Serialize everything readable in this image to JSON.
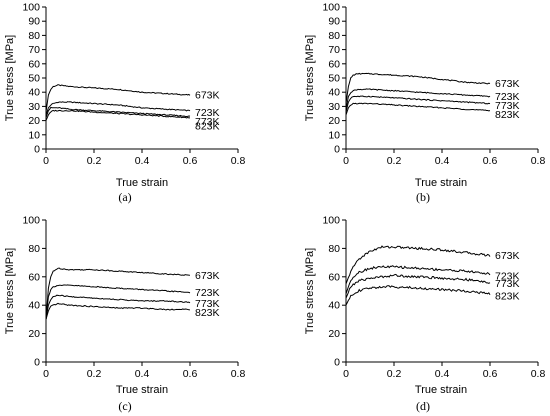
{
  "chart_data": [
    {
      "panel": "(a)",
      "type": "line",
      "xlabel": "True strain",
      "ylabel": "True stress [MPa]",
      "xlim": [
        0,
        0.8
      ],
      "ylim": [
        0,
        100
      ],
      "xticks": [
        "0",
        "0.2",
        "0.4",
        "0.6",
        "0.8"
      ],
      "yticks": [
        "0",
        "10",
        "20",
        "30",
        "40",
        "50",
        "60",
        "70",
        "80",
        "90",
        "100"
      ],
      "series": [
        {
          "name": "673K",
          "x": [
            0,
            0.01,
            0.02,
            0.03,
            0.05,
            0.1,
            0.2,
            0.3,
            0.4,
            0.5,
            0.6
          ],
          "y": [
            26,
            38,
            42,
            44,
            45,
            44,
            43,
            42,
            40,
            39,
            38
          ]
        },
        {
          "name": "723K",
          "x": [
            0,
            0.01,
            0.02,
            0.03,
            0.05,
            0.1,
            0.2,
            0.3,
            0.4,
            0.5,
            0.6
          ],
          "y": [
            24,
            29,
            31,
            32,
            33,
            33,
            32,
            31,
            29,
            28,
            27
          ]
        },
        {
          "name": "773K",
          "x": [
            0,
            0.01,
            0.02,
            0.03,
            0.05,
            0.1,
            0.2,
            0.3,
            0.4,
            0.5,
            0.6
          ],
          "y": [
            22,
            27,
            29,
            29,
            29,
            28,
            27,
            26,
            25,
            24,
            23
          ]
        },
        {
          "name": "823K",
          "x": [
            0,
            0.01,
            0.02,
            0.03,
            0.05,
            0.1,
            0.2,
            0.3,
            0.4,
            0.5,
            0.6
          ],
          "y": [
            20,
            24,
            26,
            27,
            27,
            27,
            26,
            25,
            24,
            23,
            22
          ]
        }
      ]
    },
    {
      "panel": "(b)",
      "type": "line",
      "xlabel": "True strain",
      "ylabel": "True stress [MPa]",
      "xlim": [
        0,
        0.8
      ],
      "ylim": [
        0,
        100
      ],
      "xticks": [
        "0",
        "0.2",
        "0.4",
        "0.6",
        "0.8"
      ],
      "yticks": [
        "0",
        "10",
        "20",
        "30",
        "40",
        "50",
        "60",
        "70",
        "80",
        "90",
        "100"
      ],
      "series": [
        {
          "name": "673K",
          "x": [
            0,
            0.01,
            0.02,
            0.03,
            0.05,
            0.1,
            0.2,
            0.3,
            0.4,
            0.5,
            0.6
          ],
          "y": [
            32,
            44,
            50,
            52,
            53,
            53,
            52,
            51,
            49,
            47,
            46
          ]
        },
        {
          "name": "723K",
          "x": [
            0,
            0.01,
            0.02,
            0.03,
            0.05,
            0.1,
            0.2,
            0.3,
            0.4,
            0.5,
            0.6
          ],
          "y": [
            28,
            37,
            40,
            41,
            42,
            42,
            41,
            40,
            39,
            38,
            37
          ]
        },
        {
          "name": "773K",
          "x": [
            0,
            0.01,
            0.02,
            0.03,
            0.05,
            0.1,
            0.2,
            0.3,
            0.4,
            0.5,
            0.6
          ],
          "y": [
            26,
            33,
            36,
            37,
            37,
            37,
            36,
            35,
            34,
            33,
            32
          ]
        },
        {
          "name": "823K",
          "x": [
            0,
            0.01,
            0.02,
            0.03,
            0.05,
            0.1,
            0.2,
            0.3,
            0.4,
            0.5,
            0.6
          ],
          "y": [
            24,
            29,
            31,
            32,
            32,
            32,
            31,
            30,
            29,
            28,
            27
          ]
        }
      ]
    },
    {
      "panel": "(c)",
      "type": "line",
      "xlabel": "True strain",
      "ylabel": "True stress [MPa]",
      "xlim": [
        0,
        0.8
      ],
      "ylim": [
        0,
        100
      ],
      "xticks": [
        "0",
        "0.2",
        "0.4",
        "0.6",
        "0.8"
      ],
      "yticks": [
        "0",
        "20",
        "40",
        "60",
        "80",
        "100"
      ],
      "series": [
        {
          "name": "673K",
          "x": [
            0,
            0.01,
            0.02,
            0.03,
            0.05,
            0.1,
            0.2,
            0.3,
            0.4,
            0.5,
            0.6
          ],
          "y": [
            30,
            52,
            60,
            64,
            66,
            65,
            65,
            64,
            63,
            62,
            61
          ]
        },
        {
          "name": "723K",
          "x": [
            0,
            0.01,
            0.02,
            0.03,
            0.05,
            0.1,
            0.2,
            0.3,
            0.4,
            0.5,
            0.6
          ],
          "y": [
            30,
            46,
            51,
            53,
            54,
            54,
            53,
            52,
            51,
            50,
            49
          ]
        },
        {
          "name": "773K",
          "x": [
            0,
            0.01,
            0.02,
            0.03,
            0.05,
            0.1,
            0.2,
            0.3,
            0.4,
            0.5,
            0.6
          ],
          "y": [
            30,
            40,
            44,
            46,
            47,
            46,
            45,
            44,
            43,
            43,
            42
          ]
        },
        {
          "name": "823K",
          "x": [
            0,
            0.01,
            0.02,
            0.03,
            0.05,
            0.1,
            0.2,
            0.3,
            0.4,
            0.5,
            0.6
          ],
          "y": [
            30,
            36,
            39,
            40,
            41,
            40,
            39,
            38,
            38,
            37,
            37
          ]
        }
      ]
    },
    {
      "panel": "(d)",
      "type": "line",
      "xlabel": "True strain",
      "ylabel": "True stress [MPa]",
      "xlim": [
        0,
        0.8
      ],
      "ylim": [
        0,
        100
      ],
      "xticks": [
        "0",
        "0.2",
        "0.4",
        "0.6",
        "0.8"
      ],
      "yticks": [
        "0",
        "20",
        "40",
        "60",
        "80",
        "100"
      ],
      "series": [
        {
          "name": "673K",
          "x": [
            0,
            0.02,
            0.05,
            0.1,
            0.15,
            0.2,
            0.3,
            0.4,
            0.5,
            0.55,
            0.6
          ],
          "y": [
            55,
            64,
            72,
            78,
            81,
            81,
            80,
            79,
            77,
            76,
            75
          ]
        },
        {
          "name": "723K",
          "x": [
            0,
            0.02,
            0.05,
            0.1,
            0.15,
            0.2,
            0.3,
            0.4,
            0.5,
            0.55,
            0.6
          ],
          "y": [
            48,
            58,
            63,
            66,
            67,
            67,
            66,
            65,
            64,
            63,
            62
          ]
        },
        {
          "name": "773K",
          "x": [
            0,
            0.02,
            0.05,
            0.1,
            0.15,
            0.2,
            0.3,
            0.4,
            0.5,
            0.55,
            0.6
          ],
          "y": [
            45,
            53,
            57,
            59,
            60,
            61,
            60,
            59,
            58,
            57,
            56
          ]
        },
        {
          "name": "823K",
          "x": [
            0,
            0.02,
            0.05,
            0.1,
            0.15,
            0.2,
            0.3,
            0.4,
            0.5,
            0.55,
            0.6
          ],
          "y": [
            40,
            47,
            50,
            52,
            53,
            53,
            52,
            51,
            50,
            49,
            48
          ]
        }
      ]
    }
  ]
}
